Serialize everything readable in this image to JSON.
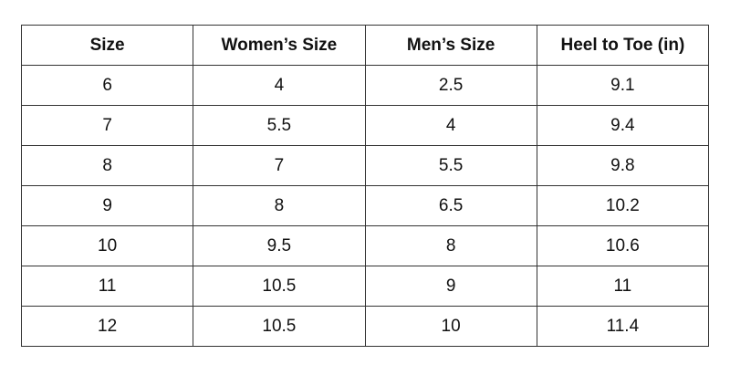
{
  "table": {
    "headers": [
      "Size",
      "Women’s Size",
      "Men’s Size",
      "Heel to Toe (in)"
    ],
    "rows": [
      [
        "6",
        "4",
        "2.5",
        "9.1"
      ],
      [
        "7",
        "5.5",
        "4",
        "9.4"
      ],
      [
        "8",
        "7",
        "5.5",
        "9.8"
      ],
      [
        "9",
        "8",
        "6.5",
        "10.2"
      ],
      [
        "10",
        "9.5",
        "8",
        "10.6"
      ],
      [
        "11",
        "10.5",
        "9",
        "11"
      ],
      [
        "12",
        "10.5",
        "10",
        "11.4"
      ]
    ]
  }
}
